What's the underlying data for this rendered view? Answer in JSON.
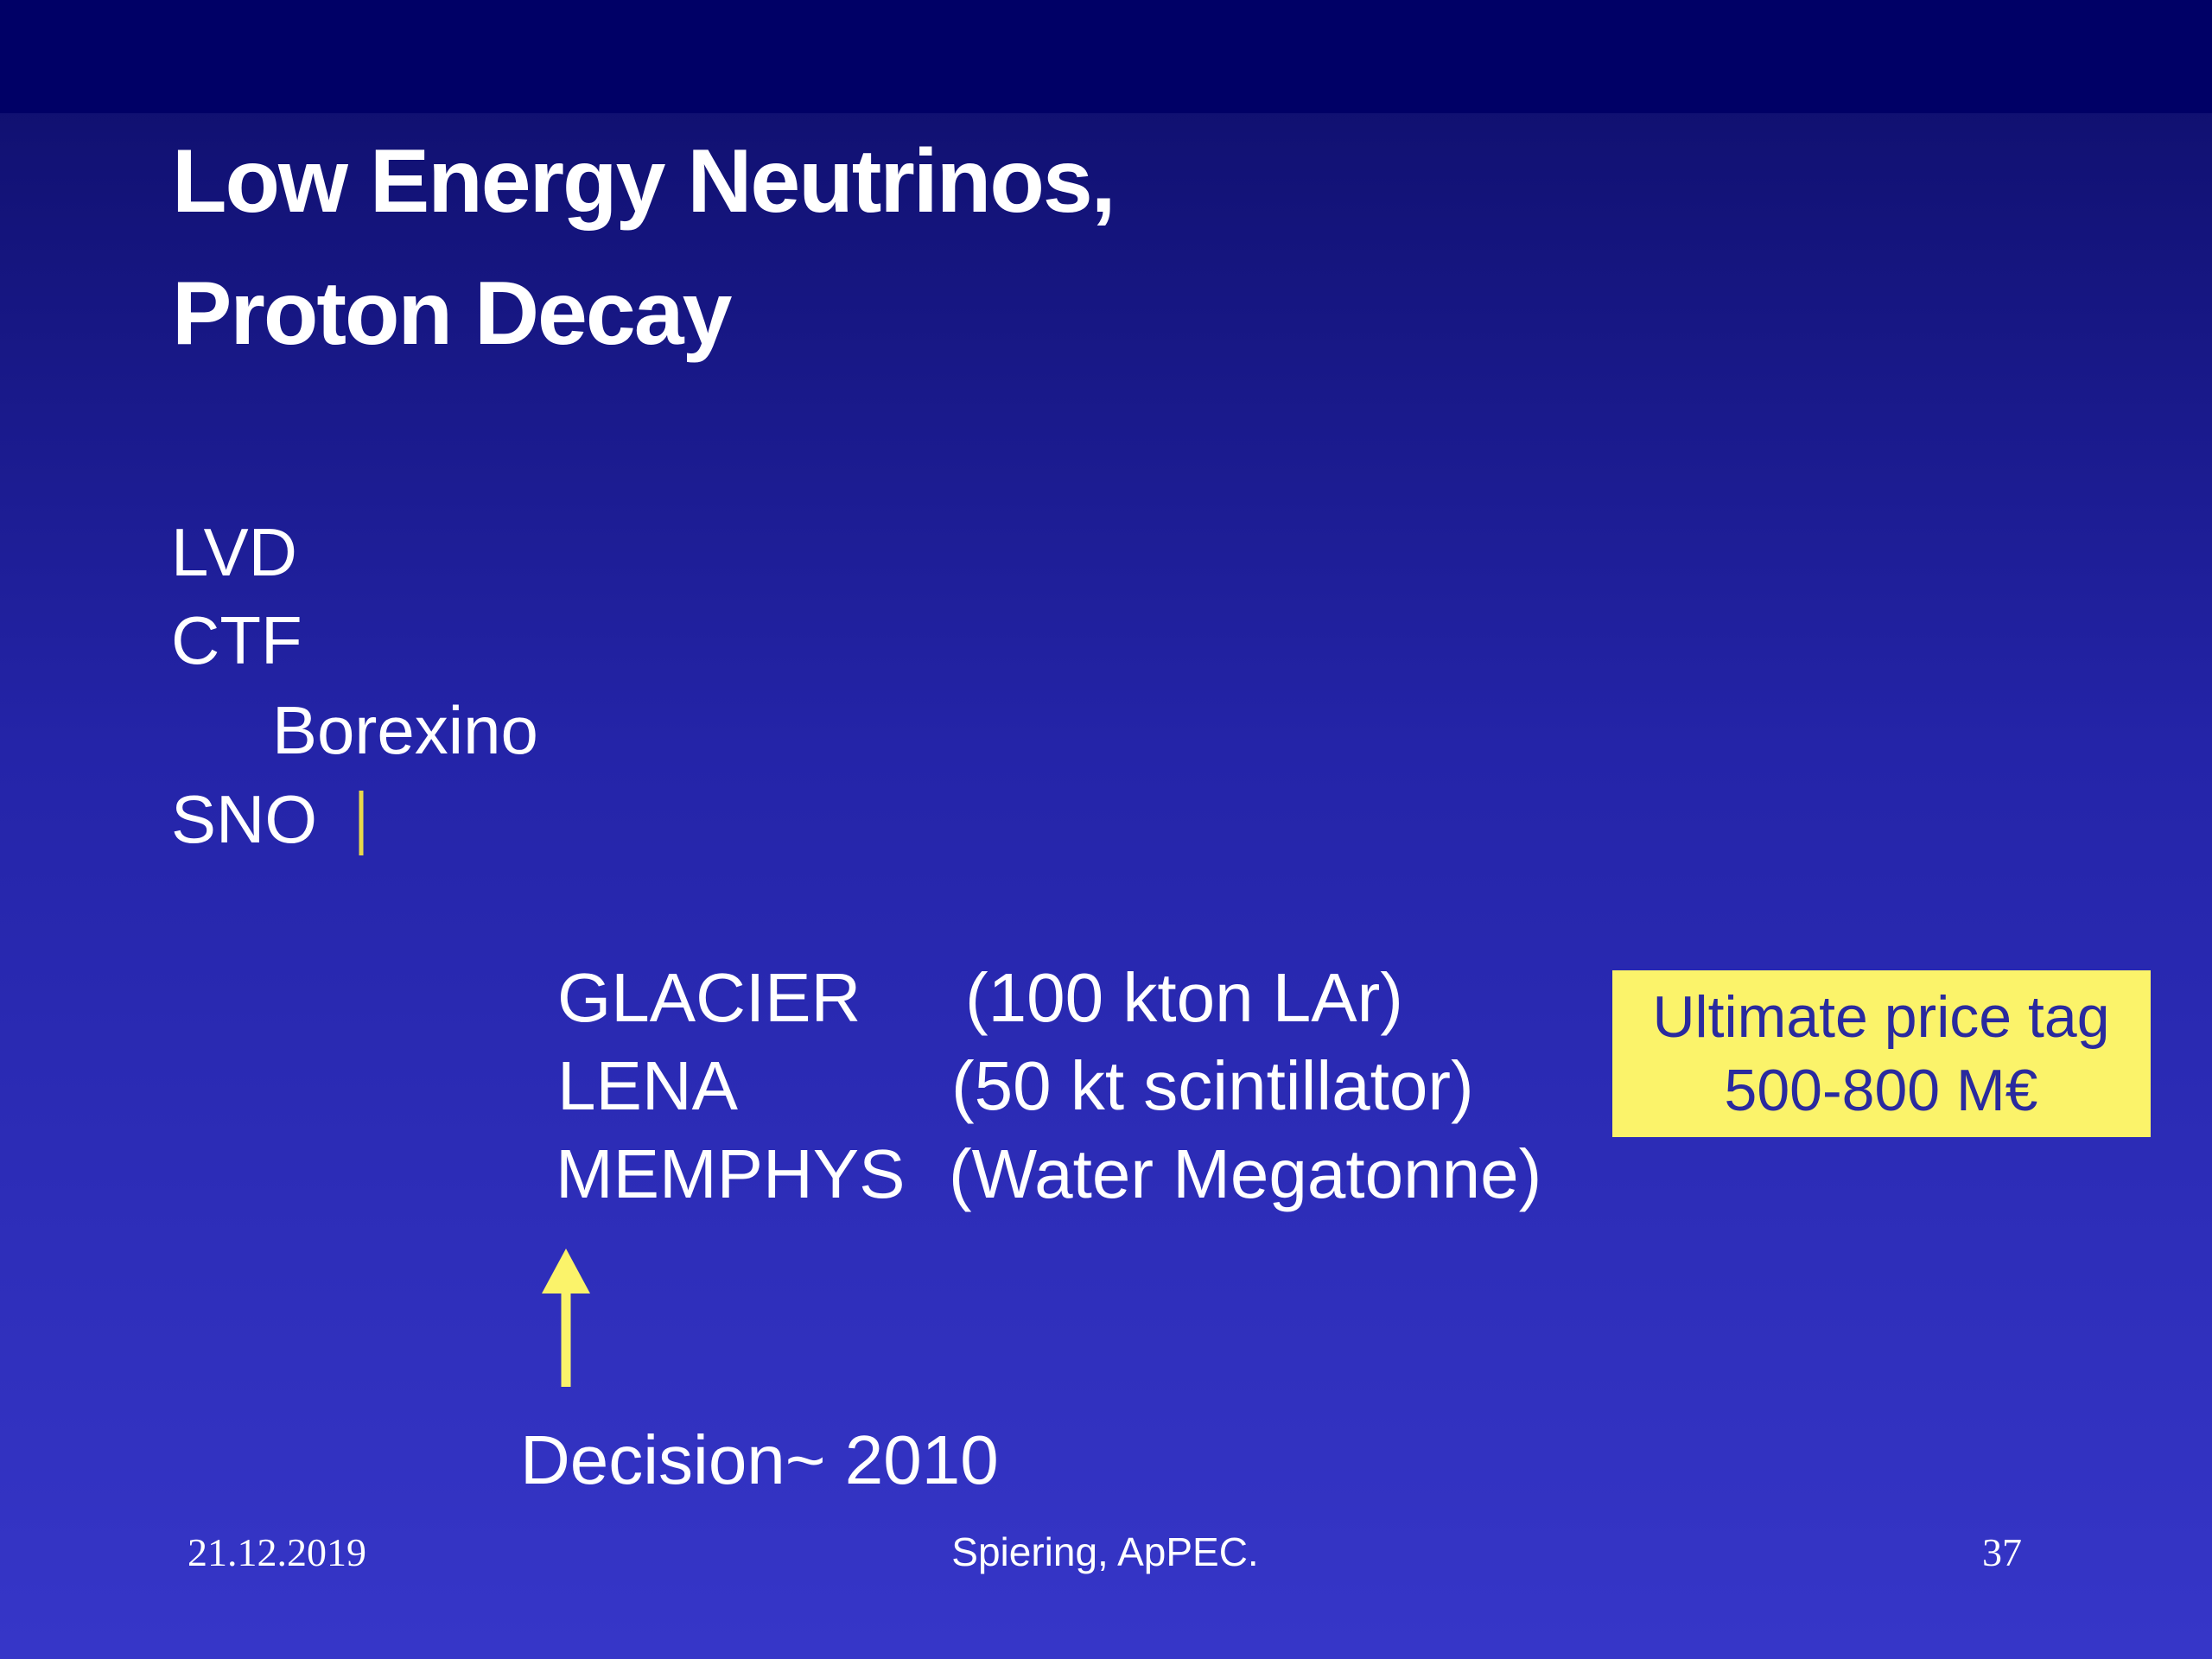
{
  "title": [
    "Low Energy Neutrinos,",
    "Proton Decay"
  ],
  "experiments": [
    "LVD",
    "CTF",
    "Borexino",
    "SNO"
  ],
  "future": [
    {
      "name": "GLACIER",
      "desc": "(100 kton LAr)"
    },
    {
      "name": "LENA",
      "desc": "(50 kt scintillator)"
    },
    {
      "name": "MEMPHYS",
      "desc": "(Water Megatonne)"
    }
  ],
  "price_tag": [
    "Ultimate price tag",
    "500-800 M€"
  ],
  "decision": "Decision~ 2010",
  "footer": {
    "date": "21.12.2019",
    "author": "Spiering, ApPEC.",
    "page": "37"
  }
}
